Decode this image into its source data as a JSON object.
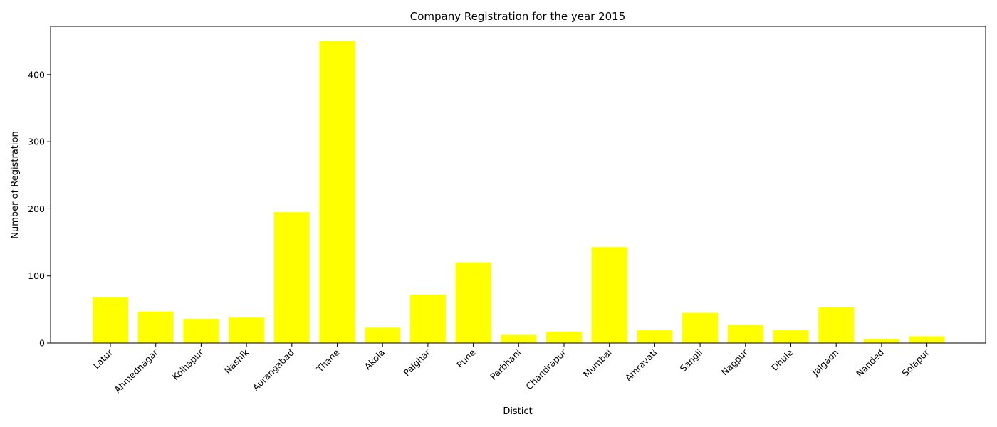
{
  "chart_data": {
    "type": "bar",
    "title": "Company Registration for the year 2015",
    "xlabel": "Distict",
    "ylabel": "Number of Registration",
    "categories": [
      "Latur",
      "Ahmednagar",
      "Kolhapur",
      "Nashik",
      "Aurangabad",
      "Thane",
      "Akola",
      "Palghar",
      "Pune",
      "Parbhani",
      "Chandrapur",
      "Mumbai",
      "Amravati",
      "Sangli",
      "Nagpur",
      "Dhule",
      "Jalgaon",
      "Nanded",
      "Solapur"
    ],
    "values": [
      68,
      47,
      36,
      38,
      195,
      450,
      23,
      72,
      120,
      12,
      17,
      143,
      19,
      45,
      27,
      19,
      53,
      6,
      10
    ],
    "ylim": [
      0,
      472
    ],
    "yticks": [
      0,
      100,
      200,
      300,
      400
    ],
    "bar_color": "#ffff00",
    "grid": false
  }
}
